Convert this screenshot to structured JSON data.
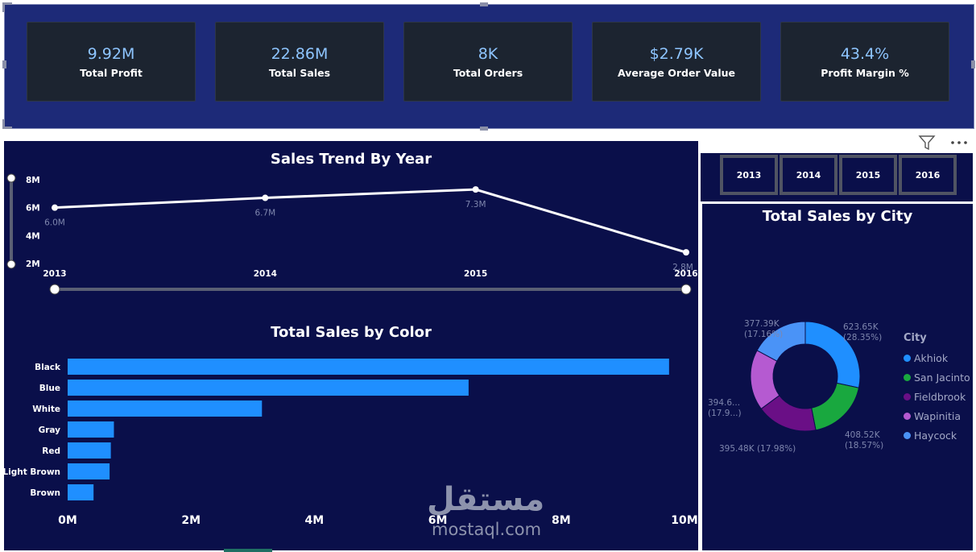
{
  "kpis": [
    {
      "value": "9.92M",
      "label": "Total Profit"
    },
    {
      "value": "22.86M",
      "label": "Total Sales"
    },
    {
      "value": "8K",
      "label": "Total Orders"
    },
    {
      "value": "$2.79K",
      "label": "Average Order Value"
    },
    {
      "value": "43.4%",
      "label": "Profit Margin %"
    }
  ],
  "year_slicer": [
    "2013",
    "2014",
    "2015",
    "2016"
  ],
  "icons": [
    "filter-icon",
    "more-options-icon"
  ],
  "watermark": {
    "arabic": "مستقل",
    "latin": "mostaql.com"
  },
  "chart_data": [
    {
      "type": "line",
      "title": "Sales Trend By Year",
      "x": [
        "2013",
        "2014",
        "2015",
        "2016"
      ],
      "values": [
        6.0,
        6.7,
        7.3,
        2.8
      ],
      "data_labels": [
        "6.0M",
        "6.7M",
        "7.3M",
        "2.8M"
      ],
      "y_ticks": [
        "2M",
        "4M",
        "6M",
        "8M"
      ],
      "ylim": [
        2,
        8
      ],
      "color": "#ffffff"
    },
    {
      "type": "bar",
      "orientation": "horizontal",
      "title": "Total Sales by Color",
      "categories": [
        "Black",
        "Blue",
        "White",
        "Gray",
        "Red",
        "Light Brown",
        "Brown"
      ],
      "values": [
        9.75,
        6.5,
        3.15,
        0.75,
        0.7,
        0.68,
        0.42
      ],
      "x_ticks": [
        "0M",
        "2M",
        "4M",
        "6M",
        "8M",
        "10M"
      ],
      "xlim": [
        0,
        10
      ],
      "color": "#1f8fff"
    },
    {
      "type": "pie",
      "donut": true,
      "title": "Total Sales by City",
      "legend_title": "City",
      "legend_position": "right",
      "labels": [
        "Akhiok",
        "San Jacinto",
        "Fieldbrook",
        "Wapinitia",
        "Haycock"
      ],
      "values": [
        623.65,
        408.52,
        395.48,
        394.6,
        377.39
      ],
      "data_labels": [
        [
          "623.65K",
          "(28.35%)"
        ],
        [
          "408.52K",
          "(18.57%)"
        ],
        [
          "395.48K (17.98%)",
          ""
        ],
        [
          "394.6...",
          "(17.9...)"
        ],
        [
          "377.39K",
          "(17.16%)"
        ]
      ],
      "colors": [
        "#1f8fff",
        "#19a83f",
        "#6a0f86",
        "#b55ad1",
        "#4a93f7"
      ]
    }
  ]
}
